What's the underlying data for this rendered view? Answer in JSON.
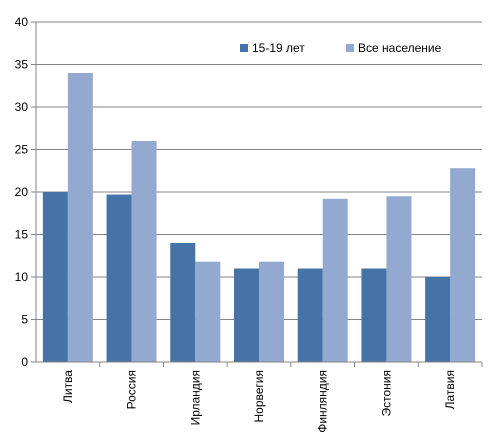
{
  "chart_data": {
    "type": "bar",
    "categories": [
      "Литва",
      "Россия",
      "Ирландия",
      "Норвегия",
      "Финляндия",
      "Эстония",
      "Латвия"
    ],
    "series": [
      {
        "name": "15-19 лет",
        "color": "#4572A7",
        "values": [
          20,
          19.7,
          14,
          11,
          11,
          11,
          10
        ]
      },
      {
        "name": "Все население",
        "color": "#93A9CF",
        "values": [
          34,
          26,
          11.8,
          11.8,
          19.2,
          19.5,
          22.8
        ]
      }
    ],
    "ylim": [
      0,
      40
    ],
    "yticks": [
      0,
      5,
      10,
      15,
      20,
      25,
      30,
      35,
      40
    ],
    "grid": true,
    "legend": "top-right"
  }
}
